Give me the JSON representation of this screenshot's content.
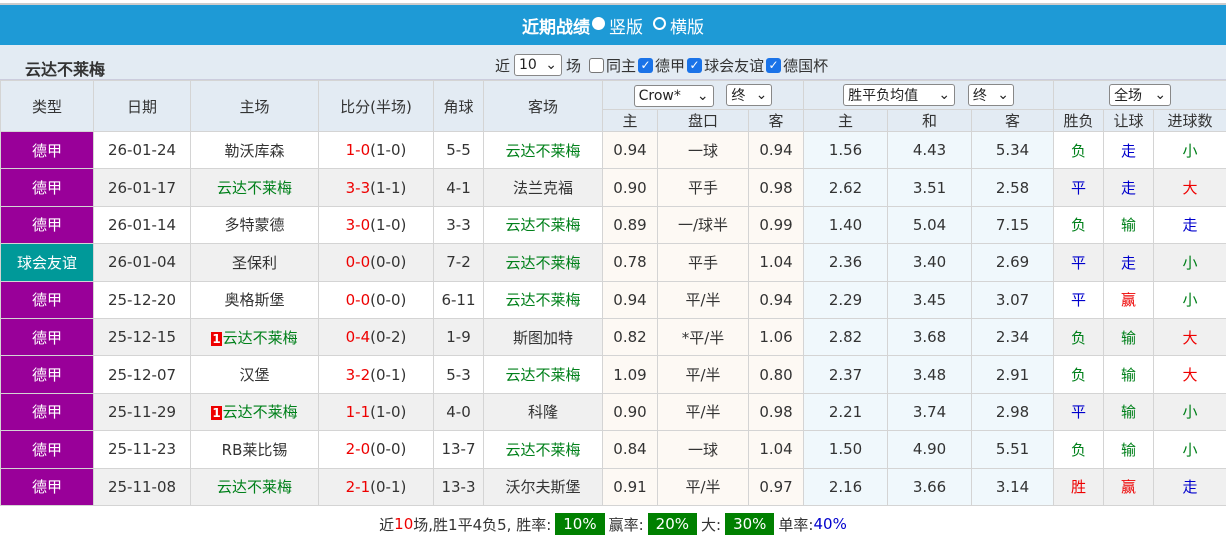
{
  "title": {
    "text": "近期战绩",
    "opt1": "竖版",
    "opt2": "横版",
    "selected": "竖版"
  },
  "filter": {
    "team": "云达不莱梅",
    "near": "近",
    "count": "10",
    "unit": "场",
    "same_home": "同主",
    "same_home_checked": false,
    "leagues": [
      {
        "label": "德甲",
        "checked": true
      },
      {
        "label": "球会友谊",
        "checked": true
      },
      {
        "label": "德国杯",
        "checked": true
      }
    ]
  },
  "header": {
    "type": "类型",
    "date": "日期",
    "home": "主场",
    "score": "比分(半场)",
    "corner": "角球",
    "away": "客场",
    "company": "Crow*",
    "ah_stage": "终",
    "euro": "胜平负均值",
    "euro_stage": "终",
    "scope": "全场",
    "sub": [
      "主",
      "盘口",
      "客",
      "主",
      "和",
      "客",
      "胜负",
      "让球",
      "进球数"
    ]
  },
  "rows": [
    {
      "league": "德甲",
      "friendly": false,
      "date": "26-01-24",
      "home": "勒沃库森",
      "home_hl": false,
      "home_rank": "",
      "score": "1-0",
      "half": "(1-0)",
      "corner": "5-5",
      "away": "云达不莱梅",
      "away_hl": true,
      "h": "0.94",
      "line": "一球",
      "a": "0.94",
      "e1": "1.56",
      "e2": "4.43",
      "e3": "5.34",
      "wl": "负",
      "ah": "走",
      "ou": "小"
    },
    {
      "league": "德甲",
      "friendly": false,
      "date": "26-01-17",
      "home": "云达不莱梅",
      "home_hl": true,
      "home_rank": "",
      "score": "3-3",
      "half": "(1-1)",
      "corner": "4-1",
      "away": "法兰克福",
      "away_hl": false,
      "h": "0.90",
      "line": "平手",
      "a": "0.98",
      "e1": "2.62",
      "e2": "3.51",
      "e3": "2.58",
      "wl": "平",
      "ah": "走",
      "ou": "大"
    },
    {
      "league": "德甲",
      "friendly": false,
      "date": "26-01-14",
      "home": "多特蒙德",
      "home_hl": false,
      "home_rank": "",
      "score": "3-0",
      "half": "(1-0)",
      "corner": "3-3",
      "away": "云达不莱梅",
      "away_hl": true,
      "h": "0.89",
      "line": "一/球半",
      "a": "0.99",
      "e1": "1.40",
      "e2": "5.04",
      "e3": "7.15",
      "wl": "负",
      "ah": "输",
      "ou": "走"
    },
    {
      "league": "球会友谊",
      "friendly": true,
      "date": "26-01-04",
      "home": "圣保利",
      "home_hl": false,
      "home_rank": "",
      "score": "0-0",
      "half": "(0-0)",
      "corner": "7-2",
      "away": "云达不莱梅",
      "away_hl": true,
      "h": "0.78",
      "line": "平手",
      "a": "1.04",
      "e1": "2.36",
      "e2": "3.40",
      "e3": "2.69",
      "wl": "平",
      "ah": "走",
      "ou": "小"
    },
    {
      "league": "德甲",
      "friendly": false,
      "date": "25-12-20",
      "home": "奥格斯堡",
      "home_hl": false,
      "home_rank": "",
      "score": "0-0",
      "half": "(0-0)",
      "corner": "6-11",
      "away": "云达不莱梅",
      "away_hl": true,
      "h": "0.94",
      "line": "平/半",
      "a": "0.94",
      "e1": "2.29",
      "e2": "3.45",
      "e3": "3.07",
      "wl": "平",
      "ah": "赢",
      "ou": "小"
    },
    {
      "league": "德甲",
      "friendly": false,
      "date": "25-12-15",
      "home": "云达不莱梅",
      "home_hl": true,
      "home_rank": "1",
      "score": "0-4",
      "half": "(0-2)",
      "corner": "1-9",
      "away": "斯图加特",
      "away_hl": false,
      "h": "0.82",
      "line": "*平/半",
      "a": "1.06",
      "e1": "2.82",
      "e2": "3.68",
      "e3": "2.34",
      "wl": "负",
      "ah": "输",
      "ou": "大"
    },
    {
      "league": "德甲",
      "friendly": false,
      "date": "25-12-07",
      "home": "汉堡",
      "home_hl": false,
      "home_rank": "",
      "score": "3-2",
      "half": "(0-1)",
      "corner": "5-3",
      "away": "云达不莱梅",
      "away_hl": true,
      "h": "1.09",
      "line": "平/半",
      "a": "0.80",
      "e1": "2.37",
      "e2": "3.48",
      "e3": "2.91",
      "wl": "负",
      "ah": "输",
      "ou": "大"
    },
    {
      "league": "德甲",
      "friendly": false,
      "date": "25-11-29",
      "home": "云达不莱梅",
      "home_hl": true,
      "home_rank": "1",
      "score": "1-1",
      "half": "(1-0)",
      "corner": "4-0",
      "away": "科隆",
      "away_hl": false,
      "h": "0.90",
      "line": "平/半",
      "a": "0.98",
      "e1": "2.21",
      "e2": "3.74",
      "e3": "2.98",
      "wl": "平",
      "ah": "输",
      "ou": "小"
    },
    {
      "league": "德甲",
      "friendly": false,
      "date": "25-11-23",
      "home": "RB莱比锡",
      "home_hl": false,
      "home_rank": "",
      "score": "2-0",
      "half": "(0-0)",
      "corner": "13-7",
      "away": "云达不莱梅",
      "away_hl": true,
      "h": "0.84",
      "line": "一球",
      "a": "1.04",
      "e1": "1.50",
      "e2": "4.90",
      "e3": "5.51",
      "wl": "负",
      "ah": "输",
      "ou": "小"
    },
    {
      "league": "德甲",
      "friendly": false,
      "date": "25-11-08",
      "home": "云达不莱梅",
      "home_hl": true,
      "home_rank": "",
      "score": "2-1",
      "half": "(0-1)",
      "corner": "13-3",
      "away": "沃尔夫斯堡",
      "away_hl": false,
      "h": "0.91",
      "line": "平/半",
      "a": "0.97",
      "e1": "2.16",
      "e2": "3.66",
      "e3": "3.14",
      "wl": "胜",
      "ah": "赢",
      "ou": "走"
    }
  ],
  "footer": {
    "prefix": "近",
    "count": "10",
    "summary": "场,胜1平4负5, 胜率:",
    "win_rate": "10%",
    "ah_label": "赢率:",
    "ah_rate": "20%",
    "big_label": "大:",
    "big_rate": "30%",
    "odd_label": "单率:",
    "odd_rate": "40%"
  },
  "colors": {
    "title_bar": "#1e9ad6",
    "league": "#990099",
    "friendly": "#009999",
    "team_highlight": "#00801a",
    "score": "#e00",
    "rate_badge": "#008000"
  }
}
